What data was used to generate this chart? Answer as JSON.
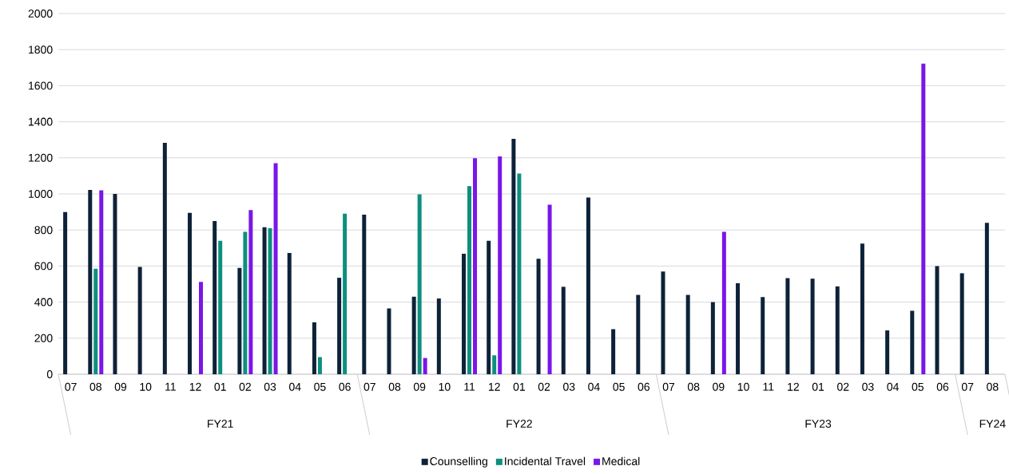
{
  "chart_data": {
    "type": "bar",
    "categories": [
      "07",
      "08",
      "09",
      "10",
      "11",
      "12",
      "01",
      "02",
      "03",
      "04",
      "05",
      "06",
      "07",
      "08",
      "09",
      "10",
      "11",
      "12",
      "01",
      "02",
      "03",
      "04",
      "05",
      "06",
      "07",
      "08",
      "09",
      "10",
      "11",
      "12",
      "01",
      "02",
      "03",
      "04",
      "05",
      "06",
      "07",
      "08"
    ],
    "series": [
      {
        "name": "Counselling",
        "color": "#0d2238",
        "values": [
          899,
          1022,
          1000,
          595,
          1283,
          895,
          850,
          590,
          815,
          673,
          288,
          535,
          885,
          365,
          430,
          420,
          668,
          740,
          1305,
          640,
          485,
          980,
          250,
          440,
          570,
          440,
          400,
          505,
          428,
          533,
          530,
          487,
          725,
          243,
          352,
          600,
          560,
          840
        ]
      },
      {
        "name": "Incidental Travel",
        "color": "#0d8f7e",
        "values": [
          null,
          585,
          null,
          null,
          null,
          null,
          740,
          790,
          810,
          null,
          95,
          890,
          null,
          null,
          998,
          null,
          1043,
          105,
          1113,
          null,
          null,
          null,
          null,
          null,
          null,
          null,
          null,
          null,
          null,
          null,
          null,
          null,
          null,
          null,
          null,
          null,
          null,
          null
        ]
      },
      {
        "name": "Medical",
        "color": "#7a16e8",
        "values": [
          null,
          1020,
          null,
          null,
          null,
          512,
          null,
          910,
          1170,
          null,
          null,
          null,
          null,
          null,
          90,
          null,
          1198,
          1208,
          null,
          940,
          null,
          null,
          null,
          null,
          null,
          null,
          790,
          null,
          null,
          null,
          null,
          null,
          null,
          null,
          1722,
          null,
          null,
          null
        ]
      }
    ],
    "annotations": [
      "FY21",
      "FY22",
      "FY23",
      "FY24"
    ],
    "ylim": [
      0,
      2000
    ],
    "yticks": [
      0,
      200,
      400,
      600,
      800,
      1000,
      1200,
      1400,
      1600,
      1800,
      2000
    ],
    "grid": "y",
    "legend": "bottom"
  }
}
